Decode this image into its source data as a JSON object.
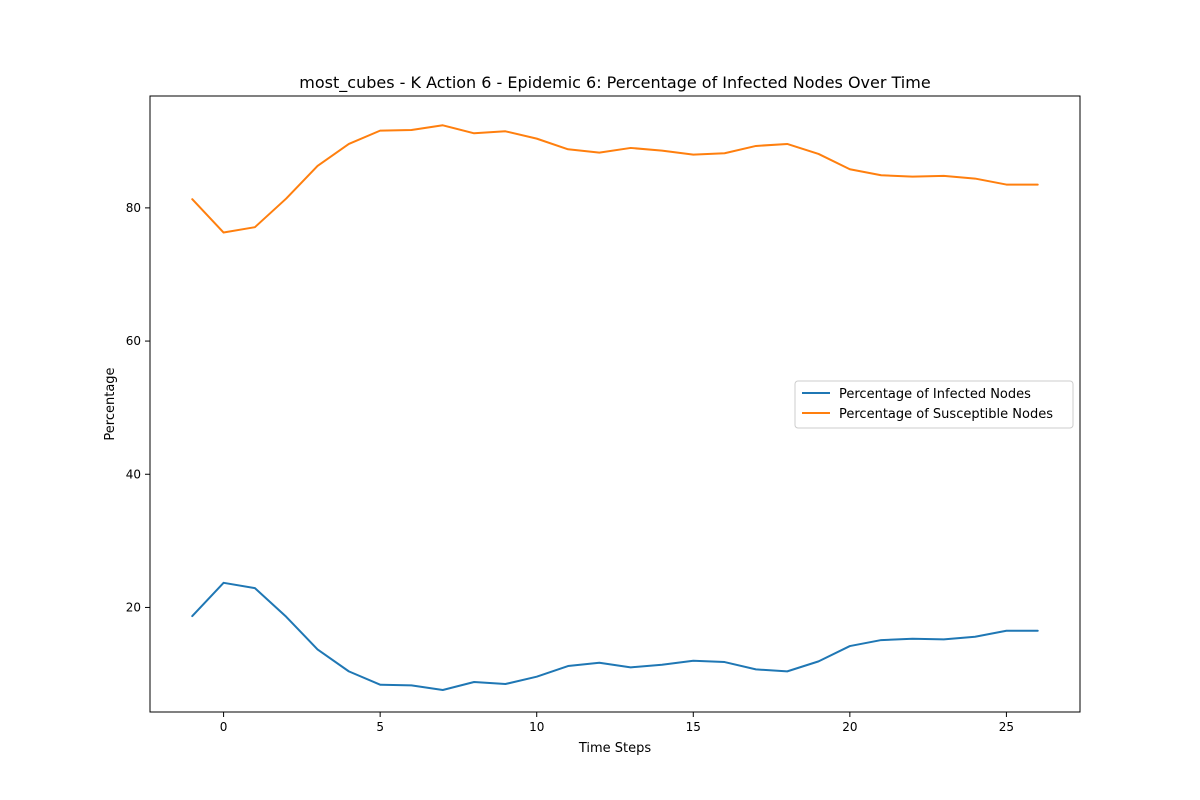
{
  "chart_data": {
    "type": "line",
    "title": "most_cubes - K Action 6 - Epidemic 6: Percentage of Infected Nodes Over Time",
    "xlabel": "Time Steps",
    "ylabel": "Percentage",
    "xlim": [
      -2.35,
      27.35
    ],
    "ylim": [
      4.3,
      96.8
    ],
    "xticks": [
      0,
      5,
      10,
      15,
      20,
      25
    ],
    "yticks": [
      20,
      40,
      60,
      80
    ],
    "grid": false,
    "legend_position": "center-right",
    "x": [
      -1,
      0,
      1,
      2,
      3,
      4,
      5,
      6,
      7,
      8,
      9,
      10,
      11,
      12,
      13,
      14,
      15,
      16,
      17,
      18,
      19,
      20,
      21,
      22,
      23,
      24,
      25,
      26
    ],
    "series": [
      {
        "name": "Percentage of Infected Nodes",
        "color": "#1f77b4",
        "values": [
          18.7,
          23.7,
          22.9,
          18.6,
          13.7,
          10.4,
          8.4,
          8.3,
          7.6,
          8.8,
          8.5,
          9.6,
          11.2,
          11.7,
          11.0,
          11.4,
          12.0,
          11.8,
          10.7,
          10.4,
          11.9,
          14.2,
          15.1,
          15.3,
          15.2,
          15.6,
          16.5,
          16.5
        ]
      },
      {
        "name": "Percentage of Susceptible Nodes",
        "color": "#ff7f0e",
        "values": [
          81.3,
          76.3,
          77.1,
          81.4,
          86.3,
          89.6,
          91.6,
          91.7,
          92.4,
          91.2,
          91.5,
          90.4,
          88.8,
          88.3,
          89.0,
          88.6,
          88.0,
          88.2,
          89.3,
          89.6,
          88.1,
          85.8,
          84.9,
          84.7,
          84.8,
          84.4,
          83.5,
          83.5
        ]
      }
    ]
  }
}
